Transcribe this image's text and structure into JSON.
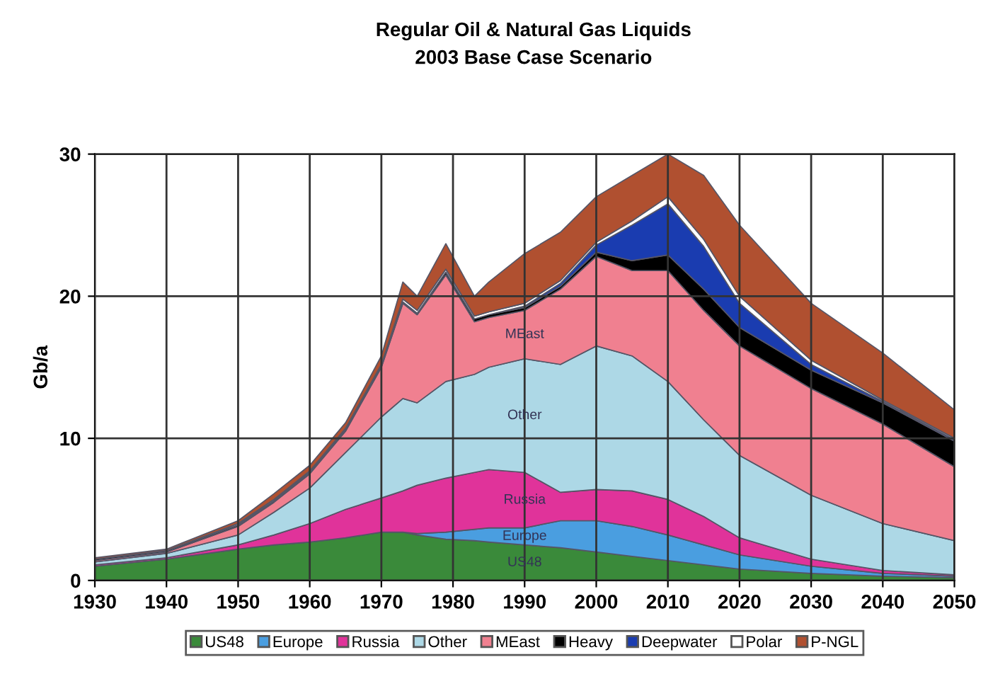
{
  "chart_data": {
    "type": "area",
    "stacked": true,
    "title": "Regular Oil & Natural Gas Liquids",
    "subtitle": "2003 Base Case Scenario",
    "ylabel": "Gb/a",
    "x": [
      1930,
      1940,
      1950,
      1955,
      1960,
      1965,
      1970,
      1973,
      1975,
      1979,
      1983,
      1985,
      1990,
      1995,
      2000,
      2005,
      2010,
      2015,
      2020,
      2030,
      2040,
      2050
    ],
    "series": [
      {
        "name": "US48",
        "color": "#3a8a3a",
        "values": [
          1.0,
          1.5,
          2.2,
          2.5,
          2.7,
          3.0,
          3.4,
          3.4,
          3.2,
          2.9,
          2.8,
          2.7,
          2.5,
          2.3,
          2.0,
          1.7,
          1.4,
          1.1,
          0.8,
          0.5,
          0.3,
          0.2
        ]
      },
      {
        "name": "Europe",
        "color": "#4a9ee0",
        "values": [
          0,
          0,
          0,
          0,
          0,
          0,
          0,
          0,
          0.1,
          0.5,
          0.8,
          1.0,
          1.2,
          1.9,
          2.2,
          2.1,
          1.8,
          1.4,
          1.0,
          0.5,
          0.2,
          0.1
        ]
      },
      {
        "name": "Russia",
        "color": "#e0339a",
        "values": [
          0.1,
          0.1,
          0.3,
          0.7,
          1.3,
          2.0,
          2.4,
          2.9,
          3.4,
          3.8,
          4.0,
          4.1,
          3.9,
          2.0,
          2.2,
          2.5,
          2.5,
          2.0,
          1.2,
          0.5,
          0.2,
          0.1
        ]
      },
      {
        "name": "Other",
        "color": "#add8e6",
        "values": [
          0.2,
          0.3,
          0.7,
          1.6,
          2.5,
          4.0,
          5.7,
          6.5,
          5.8,
          6.8,
          6.9,
          7.2,
          8.0,
          9.0,
          10.1,
          9.5,
          8.3,
          6.8,
          5.8,
          4.5,
          3.3,
          2.4
        ]
      },
      {
        "name": "MEast",
        "color": "#f08090",
        "values": [
          0.1,
          0.1,
          0.6,
          0.7,
          1.0,
          1.5,
          3.5,
          6.7,
          6.2,
          7.5,
          3.7,
          3.5,
          3.4,
          5.3,
          6.3,
          6.0,
          7.8,
          7.7,
          7.7,
          7.5,
          7.0,
          5.2
        ]
      },
      {
        "name": "Heavy",
        "color": "#000000",
        "values": [
          0.1,
          0.1,
          0.1,
          0.1,
          0.1,
          0.1,
          0.1,
          0.1,
          0.1,
          0.2,
          0.2,
          0.2,
          0.2,
          0.2,
          0.3,
          0.7,
          1.1,
          1.5,
          1.3,
          1.3,
          1.5,
          1.8
        ]
      },
      {
        "name": "Deepwater",
        "color": "#1a3cb0",
        "values": [
          0,
          0,
          0,
          0,
          0,
          0,
          0,
          0,
          0,
          0,
          0,
          0,
          0.1,
          0.2,
          0.5,
          2.5,
          3.6,
          3.0,
          1.7,
          0.4,
          0.1,
          0.1
        ]
      },
      {
        "name": "Polar",
        "color": "#ffffff",
        "values": [
          0,
          0,
          0.1,
          0.1,
          0.1,
          0.1,
          0.1,
          0.2,
          0.2,
          0.2,
          0.2,
          0.2,
          0.2,
          0.2,
          0.2,
          0.3,
          0.5,
          0.5,
          0.5,
          0.3,
          0.1,
          0.1
        ]
      },
      {
        "name": "P-NGL",
        "color": "#b05030",
        "values": [
          0.1,
          0.1,
          0.2,
          0.4,
          0.4,
          0.4,
          0.6,
          1.2,
          1.0,
          1.8,
          1.4,
          2.1,
          3.5,
          3.4,
          3.2,
          3.2,
          3.0,
          4.5,
          5.0,
          4.0,
          3.3,
          2.0
        ]
      }
    ],
    "xlim": [
      1930,
      2050
    ],
    "xticks": [
      1930,
      1940,
      1950,
      1960,
      1970,
      1980,
      1990,
      2000,
      2010,
      2020,
      2030,
      2040,
      2050
    ],
    "ylim": [
      0,
      30
    ],
    "yticks": [
      0,
      10,
      20,
      30
    ],
    "grid": true,
    "legend": "bottom",
    "annotations": [
      "US48",
      "Europe",
      "Russia",
      "Other",
      "MEast"
    ]
  }
}
